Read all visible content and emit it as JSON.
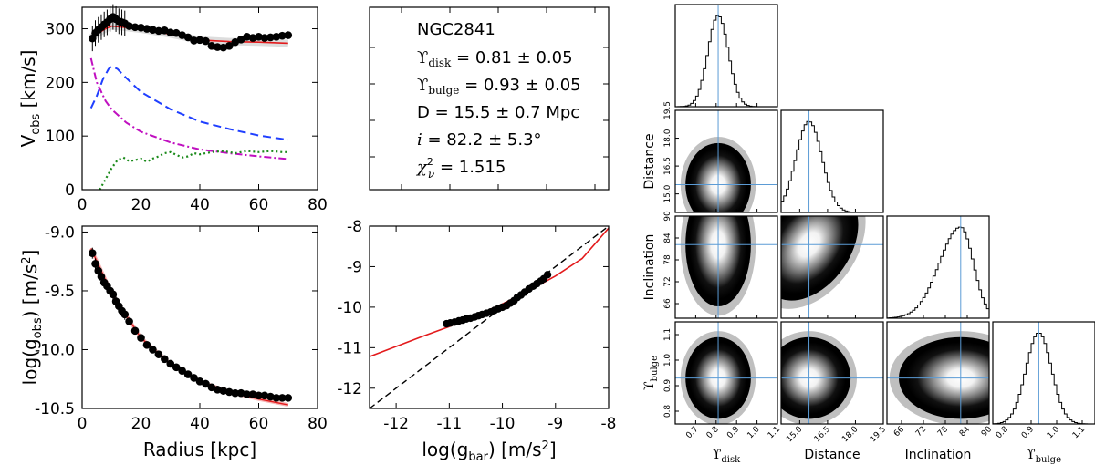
{
  "chart_data": [
    {
      "id": "rotation_curve",
      "type": "line",
      "title": "",
      "xlabel": "",
      "ylabel_main": "V",
      "ylabel_sub": "obs",
      "ylabel_unit": " [km/s]",
      "xlim": [
        0,
        80
      ],
      "ylim": [
        0,
        340
      ],
      "xticks": [
        0,
        20,
        40,
        60,
        80
      ],
      "yticks": [
        0,
        100,
        200,
        300
      ],
      "observed": {
        "x": [
          3.5,
          4.5,
          5.5,
          6.5,
          7.5,
          8.5,
          9.5,
          10.5,
          11.5,
          12.5,
          13.5,
          14.5,
          16,
          18,
          20,
          22,
          24,
          26,
          28,
          30,
          32,
          34,
          36,
          38,
          40,
          42,
          44,
          46,
          48,
          50,
          52,
          54,
          56,
          58,
          60,
          62,
          64,
          66,
          68,
          70
        ],
        "y": [
          282,
          292,
          298,
          303,
          308,
          312,
          318,
          322,
          318,
          314,
          312,
          310,
          305,
          303,
          302,
          300,
          298,
          296,
          297,
          293,
          292,
          288,
          284,
          278,
          279,
          277,
          268,
          266,
          265,
          268,
          275,
          280,
          285,
          283,
          285,
          283,
          284,
          285,
          287,
          288
        ]
      },
      "model_total": {
        "x": [
          3,
          5,
          8,
          10,
          14,
          20,
          30,
          40,
          50,
          60,
          70
        ],
        "y": [
          283,
          290,
          300,
          305,
          303,
          299,
          290,
          279,
          276,
          275,
          273
        ]
      },
      "disk": {
        "x": [
          3,
          5,
          7,
          9,
          10,
          12,
          15,
          20,
          30,
          40,
          50,
          60,
          70
        ],
        "y": [
          152,
          175,
          205,
          225,
          230,
          225,
          208,
          182,
          150,
          127,
          113,
          101,
          93
        ]
      },
      "bulge": {
        "x": [
          3,
          5,
          8,
          10,
          15,
          20,
          30,
          40,
          50,
          60,
          70
        ],
        "y": [
          245,
          200,
          165,
          150,
          125,
          108,
          88,
          75,
          68,
          62,
          57
        ]
      },
      "gas": {
        "x": [
          6,
          8,
          10,
          12,
          14,
          16,
          18,
          20,
          22,
          24,
          26,
          28,
          30,
          32,
          34,
          36,
          38,
          40,
          44,
          48,
          52,
          56,
          60,
          64,
          68,
          70
        ],
        "y": [
          0,
          20,
          40,
          55,
          60,
          53,
          55,
          58,
          52,
          58,
          62,
          68,
          70,
          65,
          60,
          62,
          68,
          66,
          70,
          72,
          68,
          72,
          70,
          72,
          70,
          70
        ]
      }
    },
    {
      "id": "accel_radius",
      "type": "scatter",
      "title": "",
      "xlabel": "Radius [kpc]",
      "ylabel_main": "log(g",
      "ylabel_sub": "obs",
      "ylabel_unit": ") [m/s",
      "ylabel_sup": "2",
      "ylabel_end": "]",
      "xlim": [
        0,
        80
      ],
      "ylim": [
        -10.5,
        -9.0
      ],
      "xticks": [
        0,
        20,
        40,
        60,
        80
      ],
      "ytick_labels": [
        "-9.0",
        "-9.5",
        "-10.0",
        "-10.5"
      ],
      "yticks": [
        -9.0,
        -9.5,
        -10.0,
        -10.5
      ],
      "observed": {
        "x": [
          3.5,
          4.5,
          5.5,
          6.5,
          7.5,
          8.5,
          9.5,
          10.5,
          11.5,
          12.5,
          13.5,
          14.5,
          16,
          18,
          20,
          22,
          24,
          26,
          28,
          30,
          32,
          34,
          36,
          38,
          40,
          42,
          44,
          46,
          48,
          50,
          52,
          54,
          56,
          58,
          60,
          62,
          64,
          66,
          68,
          70
        ],
        "y": [
          -9.18,
          -9.27,
          -9.33,
          -9.38,
          -9.43,
          -9.46,
          -9.5,
          -9.53,
          -9.59,
          -9.63,
          -9.67,
          -9.7,
          -9.76,
          -9.84,
          -9.9,
          -9.96,
          -10.0,
          -10.04,
          -10.08,
          -10.12,
          -10.15,
          -10.18,
          -10.21,
          -10.24,
          -10.27,
          -10.29,
          -10.32,
          -10.34,
          -10.35,
          -10.36,
          -10.37,
          -10.37,
          -10.38,
          -10.38,
          -10.39,
          -10.39,
          -10.4,
          -10.41,
          -10.41,
          -10.41
        ]
      },
      "model": {
        "x": [
          3,
          10,
          20,
          30,
          40,
          50,
          60,
          70
        ],
        "y": [
          -9.14,
          -9.52,
          -9.9,
          -10.12,
          -10.27,
          -10.36,
          -10.42,
          -10.47
        ]
      }
    },
    {
      "id": "rar",
      "type": "scatter",
      "title": "",
      "xlabel_main": "log(g",
      "xlabel_sub": "bar",
      "xlabel_unit": ") [m/s",
      "xlabel_sup": "2",
      "xlabel_end": "]",
      "xlim": [
        -12.5,
        -8
      ],
      "ylim": [
        -12.5,
        -8
      ],
      "xticks": [
        -12,
        -11,
        -10,
        -9,
        -8
      ],
      "yticks": [
        -8,
        -9,
        -10,
        -11,
        -12
      ],
      "observed": {
        "x": [
          -11.05,
          -10.98,
          -10.9,
          -10.82,
          -10.75,
          -10.68,
          -10.6,
          -10.52,
          -10.45,
          -10.38,
          -10.3,
          -10.22,
          -10.15,
          -10.08,
          -10.0,
          -9.92,
          -9.85,
          -9.78,
          -9.72,
          -9.65,
          -9.58,
          -9.5,
          -9.42,
          -9.35,
          -9.28,
          -9.22,
          -9.15
        ],
        "y": [
          -10.41,
          -10.39,
          -10.37,
          -10.34,
          -10.32,
          -10.29,
          -10.27,
          -10.24,
          -10.21,
          -10.18,
          -10.15,
          -10.12,
          -10.08,
          -10.04,
          -10.0,
          -9.96,
          -9.9,
          -9.84,
          -9.76,
          -9.7,
          -9.63,
          -9.55,
          -9.48,
          -9.42,
          -9.36,
          -9.3,
          -9.2
        ]
      },
      "relation": {
        "x": [
          -12.5,
          -12,
          -11.5,
          -11,
          -10.5,
          -10,
          -9.5,
          -9,
          -8.5,
          -8
        ],
        "y": [
          -11.22,
          -10.97,
          -10.72,
          -10.48,
          -10.21,
          -9.92,
          -9.59,
          -9.23,
          -8.8,
          -8.05
        ]
      },
      "one_to_one": {
        "x": [
          -12.5,
          -8
        ],
        "y": [
          -12.5,
          -8
        ]
      }
    },
    {
      "id": "corner",
      "type": "heatmap",
      "title": "",
      "galaxy": "NGC2841",
      "param_labels": [
        "disk",
        "Distance",
        "Inclination",
        "bulge"
      ],
      "best_fit": [
        0.81,
        15.5,
        82.2,
        0.93
      ],
      "ranges": [
        [
          0.6,
          1.1
        ],
        [
          14.0,
          19.5
        ],
        [
          62,
          90
        ],
        [
          0.75,
          1.15
        ]
      ],
      "tick_labels": [
        [
          "0.7",
          "0.8",
          "0.9",
          "1.0",
          "1.1"
        ],
        [
          "15.0",
          "16.5",
          "18.0",
          "19.5"
        ],
        [
          "66",
          "72",
          "78",
          "84",
          "90"
        ],
        [
          "0.8",
          "0.9",
          "1.0",
          "1.1"
        ]
      ],
      "ticks": [
        [
          0.7,
          0.8,
          0.9,
          1.0,
          1.1
        ],
        [
          15.0,
          16.5,
          18.0,
          19.5
        ],
        [
          66,
          72,
          78,
          84,
          90
        ],
        [
          0.8,
          0.9,
          1.0,
          1.1
        ]
      ],
      "sigma": [
        0.05,
        0.7,
        5.3,
        0.05
      ]
    }
  ],
  "results": {
    "galaxy": "NGC2841",
    "upsilon_disk": "0.81 ± 0.05",
    "upsilon_bulge": "0.93 ± 0.05",
    "distance": "15.5 ± 0.7 Mpc",
    "inclination": "82.2 ± 5.3°",
    "chi2": "1.515"
  },
  "colors": {
    "observed": "#000000",
    "total_model": "#e31a1c",
    "disk": "#1f3fff",
    "bulge": "#c010c0",
    "gas": "#1a8a1a",
    "relation": "#e31a1c",
    "one_to_one": "#000000",
    "best_fit_line": "#5b9bd5"
  }
}
